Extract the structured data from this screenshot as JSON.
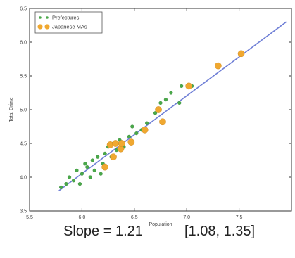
{
  "chart_data": {
    "type": "scatter",
    "xlabel": "Population",
    "ylabel": "Total Crime",
    "xlim": [
      5.5,
      8.0
    ],
    "ylim": [
      3.5,
      6.5
    ],
    "xticks": [
      "5.5",
      "6.0",
      "6.5",
      "7.0",
      "7.5"
    ],
    "yticks": [
      "3.5",
      "4.0",
      "4.5",
      "5.0",
      "5.5",
      "6.0",
      "6.5"
    ],
    "grid": false,
    "legend_position": "top-left",
    "series": [
      {
        "name": "Prefectures",
        "color": "#4aa84a",
        "marker": "small-circle",
        "points": [
          [
            5.8,
            3.85
          ],
          [
            5.85,
            3.9
          ],
          [
            5.88,
            4.0
          ],
          [
            5.92,
            3.95
          ],
          [
            5.95,
            4.1
          ],
          [
            5.98,
            3.9
          ],
          [
            6.0,
            4.05
          ],
          [
            6.03,
            4.2
          ],
          [
            6.05,
            4.15
          ],
          [
            6.08,
            4.0
          ],
          [
            6.1,
            4.25
          ],
          [
            6.12,
            4.1
          ],
          [
            6.15,
            4.3
          ],
          [
            6.18,
            4.05
          ],
          [
            6.2,
            4.2
          ],
          [
            6.22,
            4.35
          ],
          [
            6.25,
            4.45
          ],
          [
            6.28,
            4.3
          ],
          [
            6.3,
            4.5
          ],
          [
            6.33,
            4.4
          ],
          [
            6.36,
            4.55
          ],
          [
            6.4,
            4.45
          ],
          [
            6.45,
            4.6
          ],
          [
            6.48,
            4.75
          ],
          [
            6.52,
            4.65
          ],
          [
            6.57,
            4.7
          ],
          [
            6.62,
            4.8
          ],
          [
            6.7,
            4.95
          ],
          [
            6.75,
            5.1
          ],
          [
            6.8,
            5.15
          ],
          [
            6.85,
            5.25
          ],
          [
            6.93,
            5.1
          ],
          [
            6.95,
            5.35
          ],
          [
            7.05,
            5.35
          ]
        ]
      },
      {
        "name": "Japanese MAs",
        "color": "#f0a830",
        "marker": "large-circle",
        "points": [
          [
            6.22,
            4.15
          ],
          [
            6.27,
            4.48
          ],
          [
            6.3,
            4.3
          ],
          [
            6.32,
            4.5
          ],
          [
            6.37,
            4.42
          ],
          [
            6.38,
            4.5
          ],
          [
            6.47,
            4.52
          ],
          [
            6.6,
            4.7
          ],
          [
            6.73,
            5.0
          ],
          [
            6.77,
            4.82
          ],
          [
            7.02,
            5.35
          ],
          [
            7.3,
            5.65
          ],
          [
            7.52,
            5.83
          ]
        ]
      }
    ],
    "fit_line": {
      "color": "#6f7fd6",
      "x": [
        5.78,
        7.95
      ],
      "y": [
        3.8,
        6.3
      ]
    }
  },
  "caption": {
    "slope": "Slope = 1.21",
    "ci": "[1.08, 1.35]"
  }
}
